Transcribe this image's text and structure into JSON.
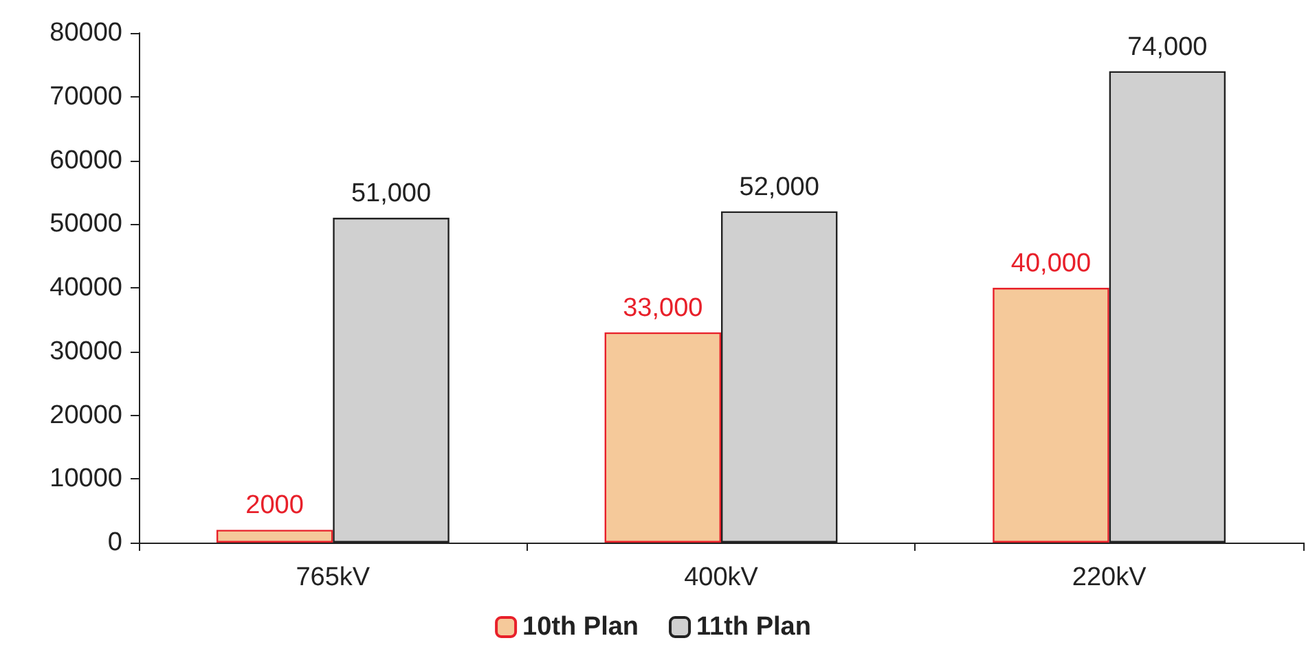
{
  "chart_data": {
    "type": "bar",
    "categories": [
      "765kV",
      "400kV",
      "220kV"
    ],
    "series": [
      {
        "name": "10th Plan",
        "color": "#f5c99a",
        "values": [
          2000,
          33000,
          40000
        ],
        "value_labels": [
          "2000",
          "33,000",
          "40,000"
        ]
      },
      {
        "name": "11th Plan",
        "color": "#d0d0d0",
        "values": [
          51000,
          52000,
          74000
        ],
        "value_labels": [
          "51,000",
          "52,000",
          "74,000"
        ]
      }
    ],
    "ylim": [
      0,
      80000
    ],
    "yticks": [
      0,
      10000,
      20000,
      30000,
      40000,
      50000,
      60000,
      70000,
      80000
    ],
    "grid": false,
    "legend": "bottom"
  }
}
